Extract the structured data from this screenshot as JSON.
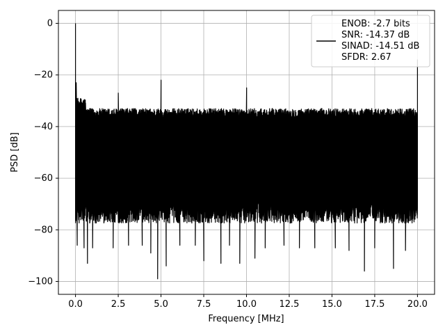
{
  "chart_data": {
    "type": "line",
    "xlabel": "Frequency [MHz]",
    "ylabel": "PSD [dB]",
    "xlim": [
      -1,
      21
    ],
    "ylim": [
      -105,
      5
    ],
    "grid": true,
    "legend_position": "top-right",
    "x_ticks": [
      0.0,
      2.5,
      5.0,
      7.5,
      10.0,
      12.5,
      15.0,
      17.5,
      20.0
    ],
    "x_tick_labels": [
      "0.0",
      "2.5",
      "5.0",
      "7.5",
      "10.0",
      "12.5",
      "15.0",
      "17.5",
      "20.0"
    ],
    "y_ticks": [
      0,
      -20,
      -40,
      -60,
      -80,
      -100
    ],
    "y_tick_labels": [
      "0",
      "−20",
      "−40",
      "−60",
      "−80",
      "−100"
    ],
    "legend": {
      "lines": [
        "ENOB: -2.7 bits",
        "SNR: -14.37 dB",
        "SINAD: -14.51 dB",
        "SFDR: 2.67"
      ]
    },
    "series": [
      {
        "color": "#000000",
        "noise_band": {
          "x_start": 0.0,
          "x_end": 20.0,
          "upper_db": -35,
          "lower_db": -75,
          "upper_near_dc_db": -31
        },
        "spurs": [
          {
            "x": 0.0,
            "y": 0
          },
          {
            "x": 0.05,
            "y": -23
          },
          {
            "x": 2.5,
            "y": -27
          },
          {
            "x": 5.0,
            "y": -22
          },
          {
            "x": 10.0,
            "y": -25
          },
          {
            "x": 20.0,
            "y": -14
          }
        ],
        "dips": [
          {
            "x": 0.1,
            "y": -86
          },
          {
            "x": 0.5,
            "y": -87
          },
          {
            "x": 0.7,
            "y": -93
          },
          {
            "x": 1.0,
            "y": -87
          },
          {
            "x": 2.2,
            "y": -87
          },
          {
            "x": 3.1,
            "y": -86
          },
          {
            "x": 3.9,
            "y": -86
          },
          {
            "x": 4.4,
            "y": -89
          },
          {
            "x": 4.8,
            "y": -99
          },
          {
            "x": 5.3,
            "y": -94
          },
          {
            "x": 6.1,
            "y": -86
          },
          {
            "x": 7.0,
            "y": -86
          },
          {
            "x": 7.5,
            "y": -92
          },
          {
            "x": 8.5,
            "y": -93
          },
          {
            "x": 9.0,
            "y": -86
          },
          {
            "x": 9.6,
            "y": -93
          },
          {
            "x": 10.5,
            "y": -91
          },
          {
            "x": 11.1,
            "y": -87
          },
          {
            "x": 12.2,
            "y": -86
          },
          {
            "x": 13.1,
            "y": -87
          },
          {
            "x": 14.0,
            "y": -87
          },
          {
            "x": 15.2,
            "y": -87
          },
          {
            "x": 16.0,
            "y": -88
          },
          {
            "x": 16.9,
            "y": -96
          },
          {
            "x": 17.5,
            "y": -87
          },
          {
            "x": 18.6,
            "y": -95
          },
          {
            "x": 19.3,
            "y": -88
          }
        ]
      }
    ]
  }
}
